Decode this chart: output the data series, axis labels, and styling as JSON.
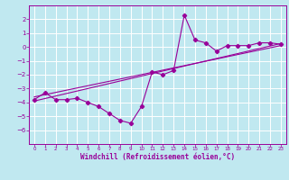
{
  "xlabel": "Windchill (Refroidissement éolien,°C)",
  "background_color": "#c0e8f0",
  "grid_color": "#ffffff",
  "line_color": "#990099",
  "xlim": [
    -0.5,
    23.5
  ],
  "ylim": [
    -7,
    3
  ],
  "xticks": [
    0,
    1,
    2,
    3,
    4,
    5,
    6,
    7,
    8,
    9,
    10,
    11,
    12,
    13,
    14,
    15,
    16,
    17,
    18,
    19,
    20,
    21,
    22,
    23
  ],
  "yticks": [
    -6,
    -5,
    -4,
    -3,
    -2,
    -1,
    0,
    1,
    2
  ],
  "curve_x": [
    0,
    1,
    2,
    3,
    4,
    5,
    6,
    7,
    8,
    9,
    10,
    11,
    12,
    13,
    14,
    15,
    16,
    17,
    18,
    19,
    20,
    21,
    22,
    23
  ],
  "curve_y": [
    -3.8,
    -3.3,
    -3.8,
    -3.8,
    -3.7,
    -4.0,
    -4.3,
    -4.8,
    -5.3,
    -5.5,
    -4.3,
    -1.8,
    -2.0,
    -1.7,
    2.3,
    0.5,
    0.3,
    -0.3,
    0.1,
    0.1,
    0.1,
    0.3,
    0.3,
    0.2
  ],
  "trend1_x": [
    0,
    23
  ],
  "trend1_y": [
    -3.9,
    0.25
  ],
  "trend2_x": [
    0,
    23
  ],
  "trend2_y": [
    -3.6,
    0.1
  ]
}
